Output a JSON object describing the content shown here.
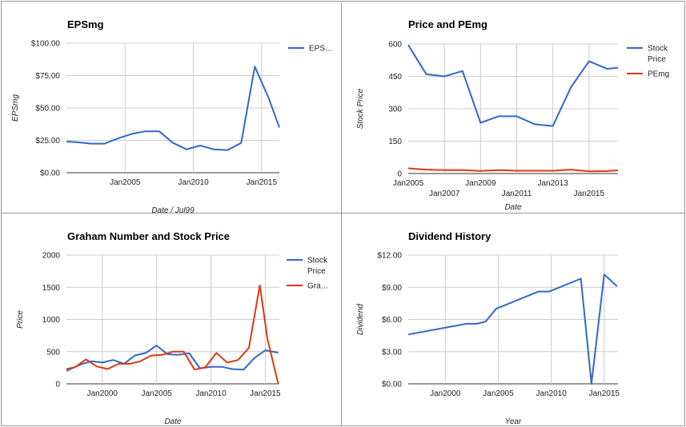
{
  "colors": {
    "blue": "#3366cc",
    "red": "#dc3912"
  },
  "chart_data": [
    {
      "type": "line",
      "title": "EPSmg",
      "xlabel": "Date / Jul99",
      "ylabel": "EPSmg",
      "xlim": [
        2000.7,
        2016.3
      ],
      "ylim": [
        0,
        100
      ],
      "yticks": [
        0,
        25,
        50,
        75,
        100
      ],
      "ytick_labels": [
        "$0.00",
        "$25.00",
        "$50.00",
        "$75.00",
        "$100.00"
      ],
      "xticks": [
        2005,
        2010,
        2015
      ],
      "xtick_labels": [
        "Jan2005",
        "Jan2010",
        "Jan2015"
      ],
      "legend_position": "right",
      "grid": true,
      "series": [
        {
          "name": "EPS…",
          "color": "#3366cc",
          "x": [
            2000.7,
            2001.5,
            2002.5,
            2003.5,
            2004.6,
            2005.5,
            2006.5,
            2007.5,
            2008.5,
            2009.5,
            2010.5,
            2011.5,
            2012.5,
            2013.5,
            2014.5,
            2015.5,
            2016.3
          ],
          "y": [
            24,
            23.5,
            22.5,
            22.5,
            27,
            30,
            32,
            32,
            23,
            18,
            21,
            18,
            17.5,
            23,
            82,
            58,
            35
          ]
        }
      ]
    },
    {
      "type": "line",
      "title": "Price and PEmg",
      "xlabel": "Date",
      "ylabel": "Stock Price",
      "xlim": [
        2005,
        2016.6
      ],
      "ylim": [
        0,
        600
      ],
      "yticks": [
        0,
        150,
        300,
        450,
        600
      ],
      "ytick_labels": [
        "0",
        "150",
        "300",
        "450",
        "600"
      ],
      "xticks": [
        2005,
        2007,
        2009,
        2011,
        2013,
        2015
      ],
      "xtick_labels": [
        "Jan2005",
        "Jan2007",
        "Jan2009",
        "Jan2011",
        "Jan2013",
        "Jan2015"
      ],
      "legend_position": "right",
      "grid": true,
      "series": [
        {
          "name": "Stock Price",
          "color": "#3366cc",
          "x": [
            2005,
            2006,
            2007,
            2008,
            2009,
            2010,
            2011,
            2012,
            2013,
            2014,
            2015,
            2016,
            2016.6
          ],
          "y": [
            595,
            460,
            450,
            475,
            235,
            265,
            265,
            228,
            220,
            400,
            520,
            485,
            490
          ]
        },
        {
          "name": "PEmg",
          "color": "#dc3912",
          "x": [
            2005,
            2006,
            2007,
            2008,
            2009,
            2010,
            2011,
            2012,
            2013,
            2014,
            2015,
            2016,
            2016.6
          ],
          "y": [
            24,
            18,
            16,
            16,
            12,
            16,
            13,
            13,
            13,
            18,
            10,
            11,
            15
          ]
        }
      ]
    },
    {
      "type": "line",
      "title": "Graham Number and Stock Price",
      "xlabel": "Date",
      "ylabel": "Price",
      "xlim": [
        1996.7,
        2016.3
      ],
      "ylim": [
        0,
        2000
      ],
      "yticks": [
        0,
        500,
        1000,
        1500,
        2000
      ],
      "ytick_labels": [
        "0",
        "500",
        "1000",
        "1500",
        "2000"
      ],
      "xticks": [
        2000,
        2005,
        2010,
        2015
      ],
      "xtick_labels": [
        "Jan2000",
        "Jan2005",
        "Jan2010",
        "Jan2015"
      ],
      "legend_position": "right",
      "grid": true,
      "series": [
        {
          "name": "Stock Price",
          "color": "#3366cc",
          "x": [
            1996.7,
            1998,
            1999,
            2000,
            2001,
            2002,
            2003,
            2004,
            2005,
            2006,
            2007,
            2008,
            2009,
            2010,
            2011,
            2012,
            2013,
            2014,
            2015,
            2016.2
          ],
          "y": [
            200,
            300,
            350,
            330,
            370,
            310,
            440,
            480,
            595,
            460,
            450,
            475,
            240,
            265,
            265,
            228,
            220,
            400,
            520,
            485
          ]
        },
        {
          "name": "Gra…",
          "color": "#dc3912",
          "x": [
            1996.7,
            1997.5,
            1998.5,
            1999.5,
            2000.5,
            2001.5,
            2002.5,
            2003.5,
            2004.5,
            2005.5,
            2006.5,
            2007.5,
            2008.5,
            2009.5,
            2010.5,
            2011.5,
            2012.5,
            2013.5,
            2014.5,
            2015.2,
            2016.2
          ],
          "y": [
            230,
            260,
            380,
            270,
            230,
            310,
            310,
            350,
            440,
            450,
            500,
            500,
            220,
            260,
            480,
            330,
            370,
            560,
            1530,
            700,
            0
          ]
        }
      ]
    },
    {
      "type": "line",
      "title": "Dividend History",
      "xlabel": "Year",
      "ylabel": "Dividend",
      "xlim": [
        1996.5,
        2016.3
      ],
      "ylim": [
        0,
        12
      ],
      "yticks": [
        0,
        3,
        6,
        9,
        12
      ],
      "ytick_labels": [
        "$0.00",
        "$3.00",
        "$6.00",
        "$9.00",
        "$12.00"
      ],
      "xticks": [
        2000,
        2005,
        2010,
        2015
      ],
      "xtick_labels": [
        "Jan2000",
        "Jan2005",
        "Jan2010",
        "Jan2015"
      ],
      "grid": true,
      "series": [
        {
          "name": "",
          "color": "#3366cc",
          "x": [
            1996.5,
            2002,
            2003,
            2003.8,
            2004.8,
            2008.8,
            2009.8,
            2012.8,
            2013.8,
            2015,
            2016.2
          ],
          "y": [
            4.6,
            5.6,
            5.6,
            5.8,
            7.0,
            8.6,
            8.6,
            9.8,
            0,
            10.2,
            9.1
          ]
        }
      ]
    }
  ]
}
